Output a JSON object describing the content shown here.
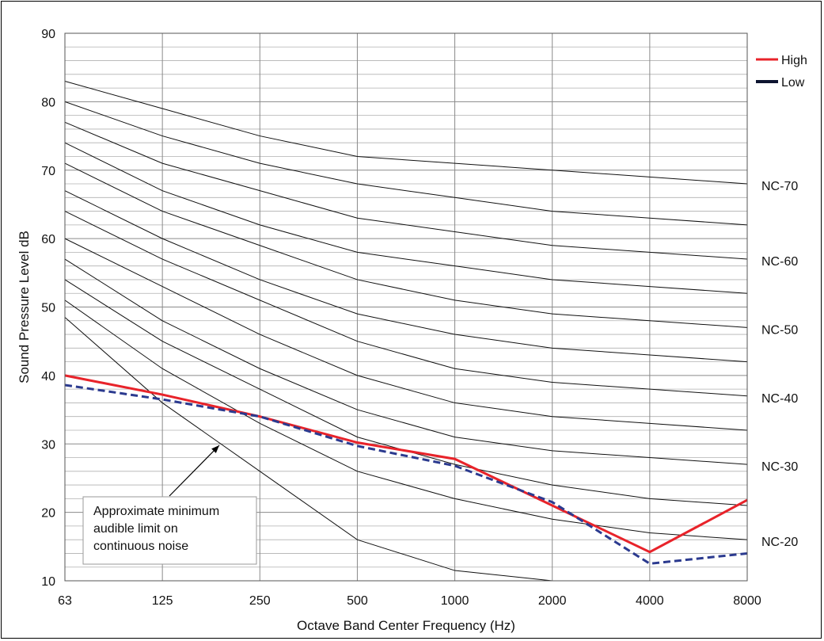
{
  "chart_data": {
    "type": "line",
    "title": "",
    "xlabel": "Octave Band Center Frequency (Hz)",
    "ylabel": "Sound Pressure Level dB",
    "x_scale": "log2",
    "categories": [
      "63",
      "125",
      "250",
      "500",
      "1000",
      "2000",
      "4000",
      "8000"
    ],
    "ylim": [
      10,
      90
    ],
    "y_ticks": [
      10,
      20,
      30,
      40,
      50,
      60,
      70,
      80,
      90
    ],
    "grid": true,
    "legend_position": "top-right",
    "series": [
      {
        "name": "High",
        "color": "#e8232a",
        "style": "solid",
        "values": [
          40,
          37.2,
          34,
          30.2,
          27.8,
          21,
          14.2,
          21.8
        ]
      },
      {
        "name": "Low",
        "color": "#2b3a8f",
        "style": "dashed",
        "values": [
          38.6,
          36.5,
          34,
          29.7,
          26.8,
          21.5,
          12.5,
          14
        ]
      }
    ],
    "legend": [
      {
        "label": "High",
        "color": "#e8232a"
      },
      {
        "label": "Low",
        "color": "#0d1430"
      }
    ],
    "nc_curves": [
      {
        "values": [
          83,
          79,
          75,
          72,
          71,
          70,
          69,
          68
        ],
        "label": "NC-70"
      },
      {
        "values": [
          80,
          75,
          71,
          68,
          66,
          64,
          63,
          62
        ],
        "label": ""
      },
      {
        "values": [
          77,
          71,
          67,
          63,
          61,
          59,
          58,
          57
        ],
        "label": "NC-60"
      },
      {
        "values": [
          74,
          67,
          62,
          58,
          56,
          54,
          53,
          52
        ],
        "label": ""
      },
      {
        "values": [
          71,
          64,
          59,
          54,
          51,
          49,
          48,
          47
        ],
        "label": "NC-50"
      },
      {
        "values": [
          67,
          60,
          54,
          49,
          46,
          44,
          43,
          42
        ],
        "label": ""
      },
      {
        "values": [
          64,
          57,
          51,
          45,
          41,
          39,
          38,
          37
        ],
        "label": "NC-40"
      },
      {
        "values": [
          60,
          53,
          46,
          40,
          36,
          34,
          33,
          32
        ],
        "label": ""
      },
      {
        "values": [
          57,
          48,
          41,
          35,
          31,
          29,
          28,
          27
        ],
        "label": "NC-30"
      },
      {
        "values": [
          54,
          45,
          38,
          31,
          27,
          24,
          22,
          21
        ],
        "label": ""
      },
      {
        "values": [
          51,
          41,
          33,
          26,
          22,
          19,
          17,
          16
        ],
        "label": "NC-20"
      }
    ],
    "audible_limit": {
      "values": [
        48.5,
        36,
        26,
        16,
        11.5,
        10
      ]
    },
    "annotation": "Approximate minimum audible limit on continuous noise"
  },
  "annotation_lines": [
    "Approximate minimum",
    "audible limit on",
    "continuous noise"
  ]
}
